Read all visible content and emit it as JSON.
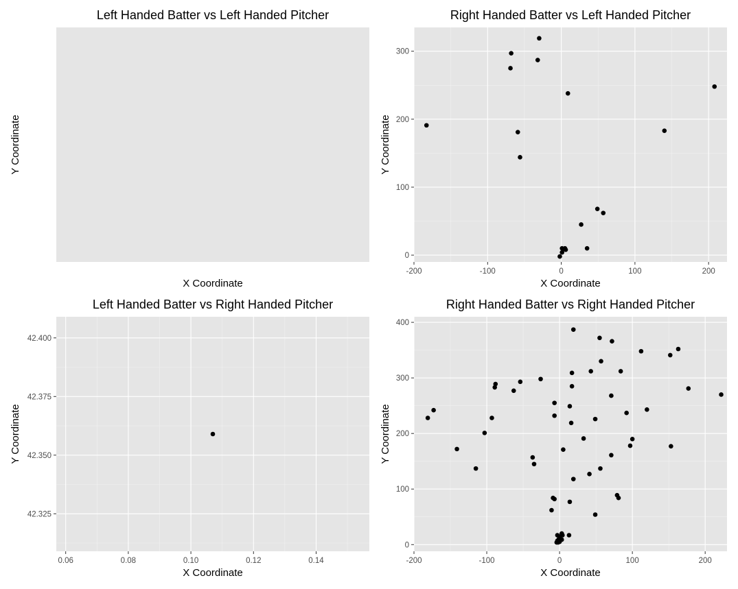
{
  "chart_data": [
    {
      "type": "scatter",
      "title": "Left Handed Batter vs Left Handed Pitcher",
      "xlabel": "X Coordinate",
      "ylabel": "Y Coordinate",
      "xlim": null,
      "ylim": null,
      "x_ticks": [],
      "y_ticks": [],
      "grid": false,
      "points": []
    },
    {
      "type": "scatter",
      "title": "Right Handed Batter vs Left Handed Pitcher",
      "xlabel": "X Coordinate",
      "ylabel": "Y Coordinate",
      "xlim": [
        -200,
        225
      ],
      "ylim": [
        -10,
        335
      ],
      "x_ticks": [
        -200,
        -100,
        0,
        100,
        200
      ],
      "y_ticks": [
        0,
        100,
        200,
        300
      ],
      "grid": true,
      "points": [
        [
          -183,
          191
        ],
        [
          -68,
          297
        ],
        [
          -69,
          275
        ],
        [
          -30,
          319
        ],
        [
          -32,
          287
        ],
        [
          9,
          238
        ],
        [
          -59,
          181
        ],
        [
          -56,
          144
        ],
        [
          208,
          248
        ],
        [
          140,
          183
        ],
        [
          49,
          68
        ],
        [
          57,
          62
        ],
        [
          27,
          45
        ],
        [
          35,
          10
        ],
        [
          1,
          10
        ],
        [
          3,
          9
        ],
        [
          6,
          8
        ],
        [
          5,
          10
        ],
        [
          1,
          4
        ],
        [
          -2,
          -2
        ]
      ]
    },
    {
      "type": "scatter",
      "title": "Left Handed Batter vs Right Handed Pitcher",
      "xlabel": "X Coordinate",
      "ylabel": "Y Coordinate",
      "xlim": [
        0.057,
        0.157
      ],
      "ylim": [
        42.309,
        42.409
      ],
      "x_ticks": [
        0.06,
        0.08,
        0.1,
        0.12,
        0.14
      ],
      "y_ticks": [
        42.325,
        42.35,
        42.375,
        42.4
      ],
      "y_tick_labels": [
        "42.325",
        "42.350",
        "42.375",
        "42.400"
      ],
      "grid": true,
      "points": [
        [
          0.107,
          42.359
        ]
      ]
    },
    {
      "type": "scatter",
      "title": "Right Handed Batter vs Right Handed Pitcher",
      "xlabel": "X Coordinate",
      "ylabel": "Y Coordinate",
      "xlim": [
        -200,
        230
      ],
      "ylim": [
        -12,
        410
      ],
      "x_ticks": [
        -200,
        -100,
        0,
        100,
        200
      ],
      "y_ticks": [
        0,
        100,
        200,
        300,
        400
      ],
      "grid": true,
      "points": [
        [
          -181,
          228
        ],
        [
          -173,
          242
        ],
        [
          -141,
          172
        ],
        [
          -115,
          137
        ],
        [
          -103,
          201
        ],
        [
          -93,
          228
        ],
        [
          -89,
          283
        ],
        [
          -88,
          289
        ],
        [
          -63,
          277
        ],
        [
          -54,
          293
        ],
        [
          -26,
          298
        ],
        [
          -37,
          157
        ],
        [
          -35,
          145
        ],
        [
          -7,
          255
        ],
        [
          -7,
          232
        ],
        [
          -7,
          82
        ],
        [
          -9,
          84
        ],
        [
          -11,
          62
        ],
        [
          19,
          387
        ],
        [
          55,
          372
        ],
        [
          72,
          366
        ],
        [
          112,
          348
        ],
        [
          152,
          341
        ],
        [
          163,
          352
        ],
        [
          177,
          281
        ],
        [
          222,
          270
        ],
        [
          17,
          309
        ],
        [
          17,
          285
        ],
        [
          43,
          312
        ],
        [
          57,
          330
        ],
        [
          84,
          312
        ],
        [
          71,
          268
        ],
        [
          14,
          249
        ],
        [
          16,
          219
        ],
        [
          49,
          226
        ],
        [
          33,
          191
        ],
        [
          92,
          237
        ],
        [
          120,
          243
        ],
        [
          100,
          190
        ],
        [
          97,
          178
        ],
        [
          153,
          177
        ],
        [
          5,
          171
        ],
        [
          71,
          161
        ],
        [
          56,
          137
        ],
        [
          41,
          127
        ],
        [
          19,
          118
        ],
        [
          79,
          89
        ],
        [
          81,
          84
        ],
        [
          14,
          77
        ],
        [
          49,
          54
        ],
        [
          -3,
          17
        ],
        [
          4,
          17
        ],
        [
          3,
          20
        ],
        [
          13,
          17
        ],
        [
          0,
          14
        ],
        [
          -1,
          10
        ],
        [
          3,
          9
        ],
        [
          -3,
          7
        ],
        [
          -2,
          6
        ],
        [
          -4,
          4
        ],
        [
          -2,
          4
        ],
        [
          0,
          5
        ]
      ]
    }
  ]
}
